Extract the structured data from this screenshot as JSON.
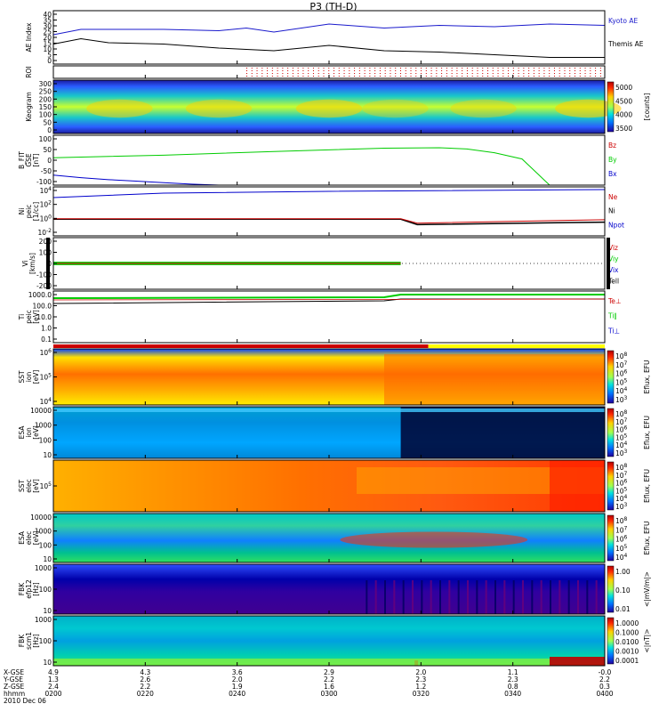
{
  "title": "P3 (TH-D)",
  "colors": {
    "kyoto": "#1a1acc",
    "themis": "#000000",
    "red": "#cc0000",
    "green": "#00cc00",
    "blue": "#0000cc",
    "black": "#000000"
  },
  "chart_data": [
    {
      "type": "line",
      "id": "ae",
      "ylabel": [
        "AE Index"
      ],
      "yticks": [
        "40",
        "35",
        "30",
        "25",
        "20",
        "15",
        "10",
        "5",
        "0"
      ],
      "ylim": [
        0,
        40
      ],
      "series": [
        {
          "name": "Kyoto AE",
          "color": "kyoto",
          "x": [
            0,
            0.05,
            0.1,
            0.2,
            0.3,
            0.35,
            0.4,
            0.5,
            0.6,
            0.7,
            0.8,
            0.9,
            1.0
          ],
          "y": [
            22,
            26,
            26,
            26,
            25,
            27,
            24,
            30,
            27,
            29,
            28,
            30,
            29
          ]
        },
        {
          "name": "Themis AE",
          "color": "themis",
          "x": [
            0,
            0.05,
            0.1,
            0.2,
            0.3,
            0.35,
            0.4,
            0.5,
            0.6,
            0.7,
            0.8,
            0.9,
            1.0
          ],
          "y": [
            15,
            19,
            16,
            15,
            12,
            11,
            10,
            14,
            10,
            9,
            7,
            5,
            5
          ]
        }
      ]
    },
    {
      "type": "line",
      "id": "roi",
      "ylabel": [
        "ROI"
      ],
      "yticks": [],
      "series": []
    },
    {
      "type": "heatmap",
      "id": "keogram",
      "ylabel": [
        "Keogram"
      ],
      "yticks": [
        "300",
        "250",
        "200",
        "150",
        "100",
        "50",
        "0"
      ],
      "ylim": [
        0,
        300
      ],
      "colorbar": {
        "ticks": [
          "5000",
          "4500",
          "4000",
          "3500"
        ],
        "label": "[counts]"
      }
    },
    {
      "type": "line",
      "id": "bfit",
      "ylabel": [
        "B_FIT",
        "GSE",
        "[nT]"
      ],
      "yticks": [
        "100",
        "50",
        "0",
        "-50",
        "-100"
      ],
      "ylim": [
        -100,
        100
      ],
      "series": [
        {
          "name": "Bz",
          "color": "red",
          "x": [
            0.0,
            0.1
          ],
          "y": [
            null,
            null
          ]
        },
        {
          "name": "By",
          "color": "green",
          "x": [
            0,
            0.2,
            0.4,
            0.6,
            0.7,
            0.75,
            0.8,
            0.85,
            0.9
          ],
          "y": [
            10,
            20,
            35,
            48,
            50,
            45,
            30,
            5,
            -100
          ]
        },
        {
          "name": "Bx",
          "color": "blue",
          "x": [
            0,
            0.05,
            0.1,
            0.15,
            0.2,
            0.25,
            0.3
          ],
          "y": [
            -60,
            -70,
            -78,
            -84,
            -90,
            -96,
            -100
          ]
        }
      ]
    },
    {
      "type": "line",
      "id": "ni",
      "ylabel": [
        "Ni",
        "peic",
        "[1/cc]"
      ],
      "yticks": [
        "10^4",
        "10^2",
        "10^0",
        "10^-2"
      ],
      "series": [
        {
          "name": "Ne",
          "color": "red"
        },
        {
          "name": "Ni",
          "color": "black"
        },
        {
          "name": "Npot",
          "color": "blue"
        }
      ]
    },
    {
      "type": "line",
      "id": "vi",
      "ylabel": [
        "Vi",
        "[km/s]"
      ],
      "yticks": [
        "200",
        "100",
        "0",
        "-100",
        "-200"
      ],
      "ylim": [
        -300,
        300
      ],
      "series": [
        {
          "name": "Viz",
          "color": "red"
        },
        {
          "name": "Viy",
          "color": "green"
        },
        {
          "name": "Vix",
          "color": "blue"
        },
        {
          "name": "Tell",
          "color": "black"
        }
      ]
    },
    {
      "type": "line",
      "id": "ti",
      "ylabel": [
        "Ti",
        "peic",
        "[eV]"
      ],
      "yticks": [
        "1000.0",
        "100.0",
        "10.0",
        "1.0",
        "0.1"
      ],
      "series": [
        {
          "name": "Te⊥",
          "color": "red"
        },
        {
          "name": "Ti∥",
          "color": "green"
        },
        {
          "name": "Ti⊥",
          "color": "blue"
        }
      ]
    },
    {
      "type": "heatmap",
      "id": "sst_i",
      "ylabel": [
        "SST",
        "ion",
        "[eV]"
      ],
      "yticks": [
        "10^6",
        "10^5",
        "10^4"
      ],
      "colorbar": {
        "ticks": [
          "10^8",
          "10^7",
          "10^6",
          "10^5",
          "10^4",
          "10^3"
        ],
        "label": "Eflux, EFU"
      }
    },
    {
      "type": "heatmap",
      "id": "esa_i",
      "ylabel": [
        "ESA",
        "ion",
        "[eV]"
      ],
      "yticks": [
        "10000",
        "1000",
        "100",
        "10"
      ],
      "colorbar": {
        "ticks": [
          "10^8",
          "10^7",
          "10^6",
          "10^5",
          "10^4",
          "10^3"
        ],
        "label": "Eflux, EFU"
      }
    },
    {
      "type": "heatmap",
      "id": "sst_e",
      "ylabel": [
        "SST",
        "elec",
        "[eV]"
      ],
      "yticks": [
        "10^5"
      ],
      "colorbar": {
        "ticks": [
          "10^8",
          "10^7",
          "10^6",
          "10^5",
          "10^4",
          "10^3"
        ],
        "label": "Eflux, EFU"
      }
    },
    {
      "type": "heatmap",
      "id": "esa_e",
      "ylabel": [
        "ESA",
        "elec",
        "[eV]"
      ],
      "yticks": [
        "10000",
        "1000",
        "100",
        "10"
      ],
      "colorbar": {
        "ticks": [
          "10^8",
          "10^7",
          "10^6",
          "10^5",
          "10^4"
        ],
        "label": "Eflux, EFU"
      }
    },
    {
      "type": "heatmap",
      "id": "fbk_e",
      "ylabel": [
        "FBK",
        "efp12",
        "[Hz]"
      ],
      "yticks": [
        "1000",
        "100",
        "10"
      ],
      "colorbar": {
        "ticks": [
          "1.00",
          "0.10",
          "0.01"
        ],
        "label": "<|mV/m|>"
      }
    },
    {
      "type": "heatmap",
      "id": "fbk_b",
      "ylabel": [
        "FBK",
        "scm1",
        "[Hz]"
      ],
      "yticks": [
        "1000",
        "100",
        "10"
      ],
      "colorbar": {
        "ticks": [
          "1.0000",
          "0.1000",
          "0.0100",
          "0.0010",
          "0.0001"
        ],
        "label": "<|nT|>"
      }
    }
  ],
  "xaxis": {
    "row_labels": [
      "X-GSE",
      "Y-GSE",
      "Z-GSE",
      "hhmm",
      "2010 Dec 06"
    ],
    "columns": [
      [
        "4.9",
        "1.3",
        "2.4",
        "0200"
      ],
      [
        "4.3",
        "2.6",
        "2.2",
        "0220"
      ],
      [
        "3.6",
        "2.0",
        "1.9",
        "0240"
      ],
      [
        "2.9",
        "2.2",
        "1.6",
        "0300"
      ],
      [
        "2.0",
        "2.3",
        "1.2",
        "0320"
      ],
      [
        "1.1",
        "2.3",
        "0.8",
        "0340"
      ],
      [
        "-0.0",
        "2.2",
        "0.3",
        "0400"
      ]
    ]
  }
}
